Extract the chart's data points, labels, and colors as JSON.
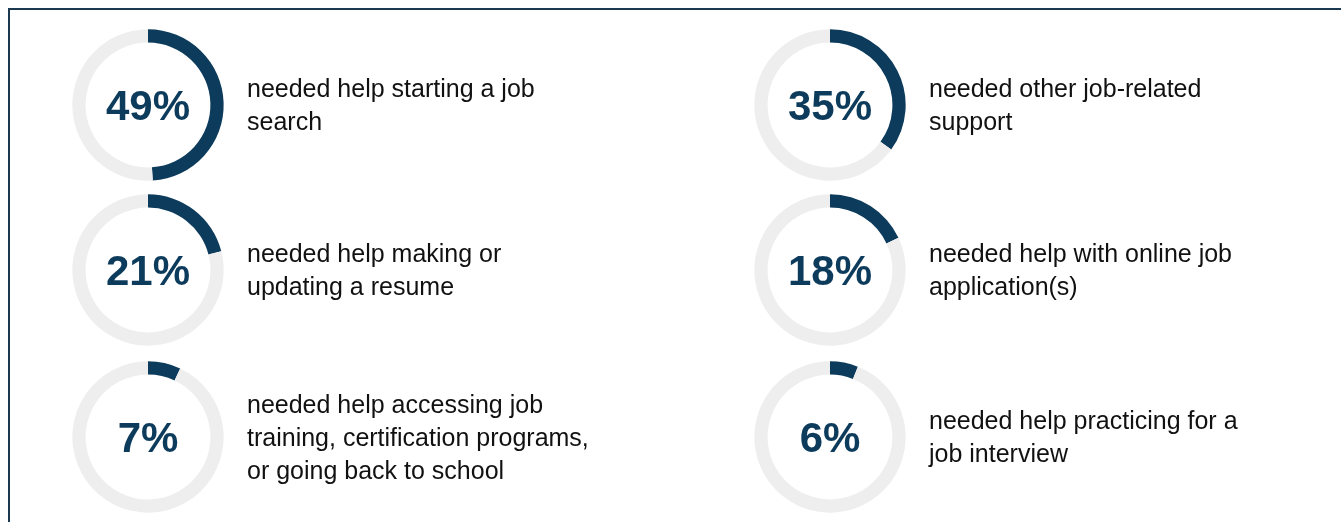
{
  "chart_data": [
    {
      "type": "donut",
      "title": "needed help starting a job\nsearch",
      "categories": [
        null,
        null
      ],
      "values": [
        49,
        51
      ],
      "colors": [
        "#0d3b5c",
        "#eeeeee"
      ],
      "annotations": [
        "49%"
      ]
    },
    {
      "type": "donut",
      "title": "needed other job-related\nsupport",
      "categories": [
        null,
        null
      ],
      "values": [
        35,
        65
      ],
      "colors": [
        "#0d3b5c",
        "#eeeeee"
      ],
      "annotations": [
        "35%"
      ]
    },
    {
      "type": "donut",
      "title": "needed help making or\nupdating a resume",
      "categories": [
        null,
        null
      ],
      "values": [
        21,
        79
      ],
      "colors": [
        "#0d3b5c",
        "#eeeeee"
      ],
      "annotations": [
        "21%"
      ]
    },
    {
      "type": "donut",
      "title": "needed help with online job\napplication(s)",
      "categories": [
        null,
        null
      ],
      "values": [
        18,
        82
      ],
      "colors": [
        "#0d3b5c",
        "#eeeeee"
      ],
      "annotations": [
        "18%"
      ]
    },
    {
      "type": "donut",
      "title": "needed help accessing job\ntraining, certification programs,\nor going back to school",
      "categories": [
        null,
        null
      ],
      "values": [
        7,
        93
      ],
      "colors": [
        "#0d3b5c",
        "#eeeeee"
      ],
      "annotations": [
        "7%"
      ]
    },
    {
      "type": "donut",
      "title": "needed help practicing for a\njob interview",
      "categories": [
        null,
        null
      ],
      "values": [
        6,
        94
      ],
      "colors": [
        "#0d3b5c",
        "#eeeeee"
      ],
      "annotations": [
        "6%"
      ]
    }
  ]
}
